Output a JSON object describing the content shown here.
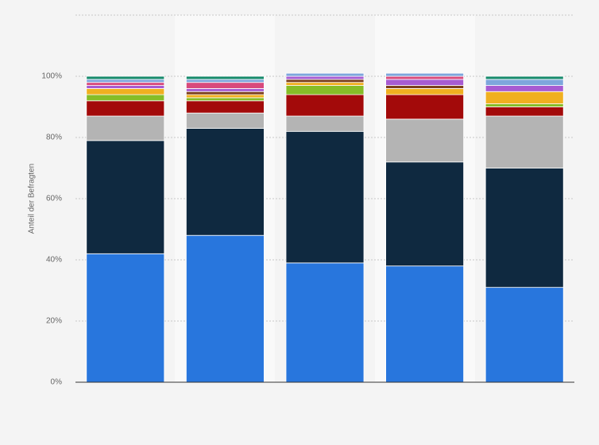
{
  "chart_data": {
    "type": "stacked_bar",
    "y_label": "Anteil der Befragten",
    "categories": [
      null,
      null,
      null,
      null,
      null
    ],
    "series": [
      {
        "color": "#2876dd",
        "values": [
          42,
          48,
          39,
          38,
          31
        ]
      },
      {
        "color": "#0f2940",
        "values": [
          37,
          35,
          43,
          34,
          39
        ]
      },
      {
        "color": "#b4b4b4",
        "values": [
          8,
          5,
          5,
          14,
          17
        ]
      },
      {
        "color": "#a30a0a",
        "values": [
          5,
          4,
          7,
          8,
          3
        ]
      },
      {
        "color": "#86bd27",
        "values": [
          2,
          1,
          3,
          0,
          1
        ]
      },
      {
        "color": "#f0b020",
        "values": [
          2,
          1,
          1,
          2,
          4
        ]
      },
      {
        "color": "#7b3f1d",
        "values": [
          0,
          1,
          1,
          1,
          0
        ]
      },
      {
        "color": "#a75bd2",
        "values": [
          1,
          1,
          1,
          2,
          2
        ]
      },
      {
        "color": "#d84a7c",
        "values": [
          1,
          2,
          0,
          1,
          0
        ]
      },
      {
        "color": "#7ea6dc",
        "values": [
          1,
          1,
          1,
          1,
          2
        ]
      },
      {
        "color": "#178a6c",
        "values": [
          1,
          1,
          0,
          0,
          1
        ]
      }
    ],
    "ylim": [
      0,
      120
    ],
    "yticks": [
      {
        "value": 0,
        "label": "0%"
      },
      {
        "value": 20,
        "label": "20%"
      },
      {
        "value": 40,
        "label": "40%"
      },
      {
        "value": 60,
        "label": "60%"
      },
      {
        "value": 80,
        "label": "80%"
      },
      {
        "value": 100,
        "label": "100%"
      }
    ],
    "grid": true
  }
}
